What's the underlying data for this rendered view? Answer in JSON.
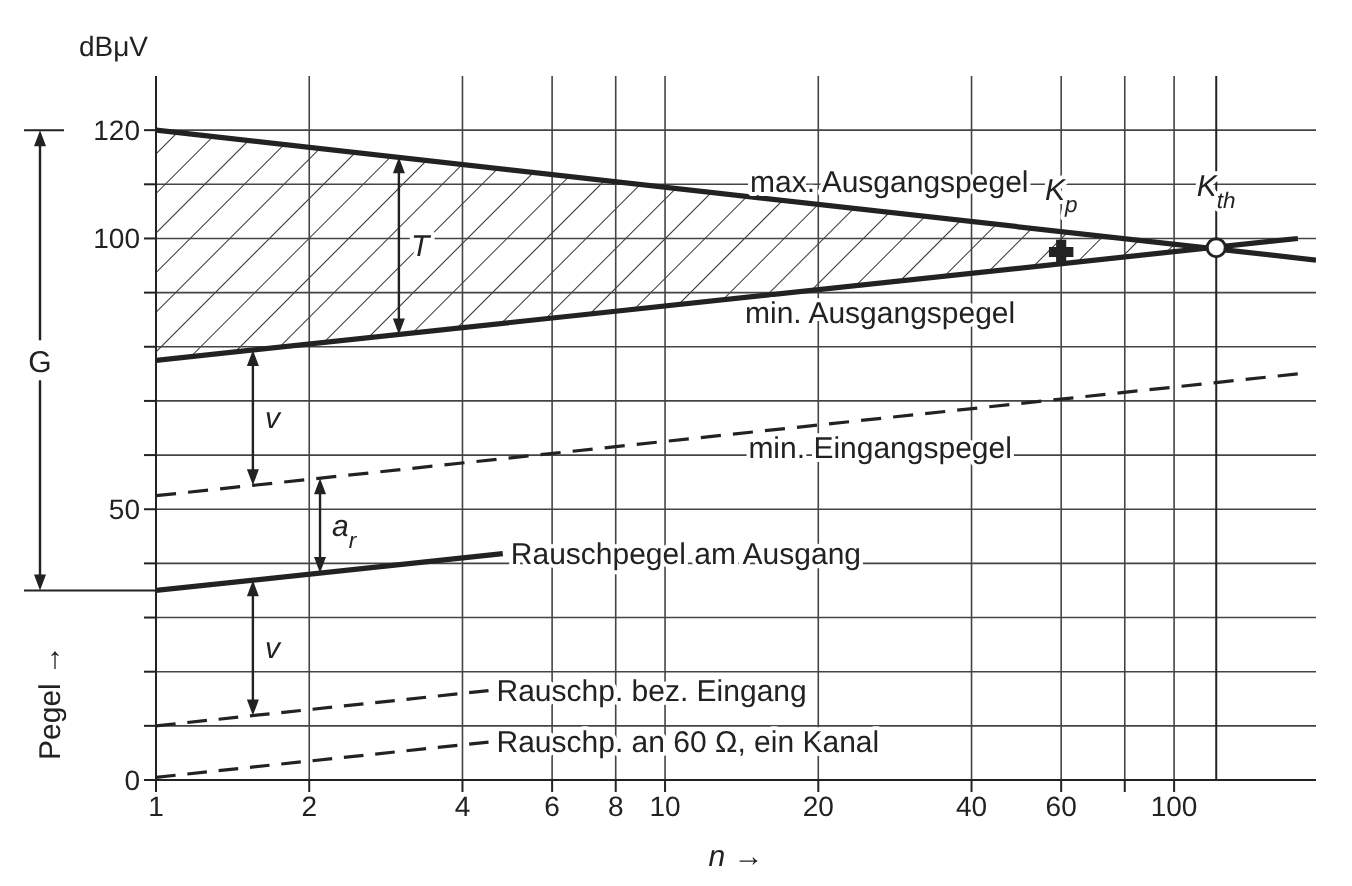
{
  "chart_data": {
    "type": "line",
    "xlabel": "n →",
    "ylabel": "Pegel →",
    "annotations": [
      "dBμV",
      "G",
      "T",
      "v",
      "a$_{r}$",
      "v"
    ],
    "series": [
      {
        "name": "max. Ausgangspegel",
        "color": "#222222",
        "line_style": "solid",
        "x": [
          1,
          190
        ],
        "values": [
          120,
          96
        ]
      },
      {
        "name": "min. Ausgangspegel",
        "color": "#222222",
        "line_style": "solid",
        "x": [
          1,
          175
        ],
        "values": [
          77.5,
          100
        ]
      },
      {
        "name": "min. Eingangspegel",
        "color": "#222222",
        "line_style": "dashed",
        "x": [
          1,
          175
        ],
        "values": [
          52.5,
          75
        ]
      },
      {
        "name": "Rauschpegel am Ausgang",
        "color": "#222222",
        "line_style": "solid",
        "x": [
          1,
          4.8
        ],
        "values": [
          35,
          41.8
        ]
      },
      {
        "name": "Rauschp. bez. Eingang",
        "color": "#222222",
        "line_style": "dashed",
        "x": [
          1,
          4.5
        ],
        "values": [
          10,
          16.5
        ]
      },
      {
        "name": "Rauschp. an 60 Ω, ein Kanal",
        "color": "#222222",
        "line_style": "dashed",
        "x": [
          1,
          4.5
        ],
        "values": [
          0.5,
          7
        ]
      },
      {
        "name": "K$_{p}$",
        "type": "scatter",
        "marker": "cross",
        "color": "#222222",
        "x": [
          60
        ],
        "values": [
          97.5
        ]
      },
      {
        "name": "K$_{th}$",
        "type": "scatter",
        "marker": "circle",
        "color": "#222222",
        "x": [
          121
        ],
        "values": [
          98.3
        ]
      }
    ],
    "xlim": [
      1,
      190
    ],
    "xticks": [
      1,
      2,
      4,
      6,
      8,
      10,
      20,
      40,
      60,
      {
        "value": 80,
        "label": null
      },
      100
    ],
    "ylim": [
      0,
      130
    ],
    "yticks": [
      0,
      {
        "value": 10,
        "label": null
      },
      {
        "value": 20,
        "label": null
      },
      {
        "value": 30,
        "label": null
      },
      {
        "value": 40,
        "label": null
      },
      50,
      {
        "value": 60,
        "label": null
      },
      {
        "value": 70,
        "label": null
      },
      {
        "value": 80,
        "label": null
      },
      {
        "value": 90,
        "label": null
      },
      100,
      {
        "value": 110,
        "label": null
      },
      120
    ],
    "log": "x",
    "grid": true,
    "legend": false,
    "ref_lines": [
      {
        "axis": "x",
        "value": 121
      }
    ]
  }
}
